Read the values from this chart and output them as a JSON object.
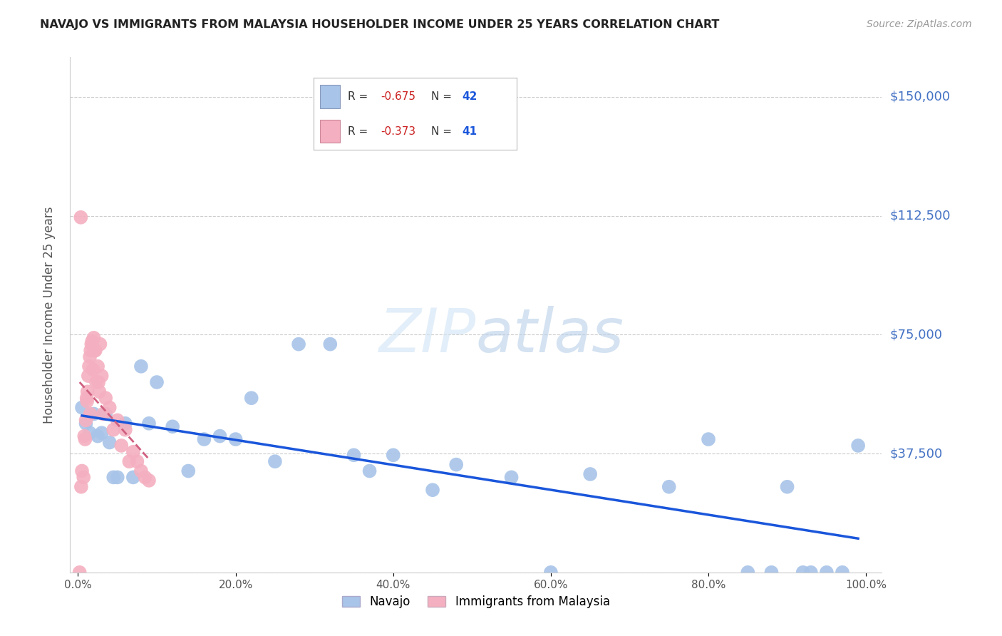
{
  "title": "NAVAJO VS IMMIGRANTS FROM MALAYSIA HOUSEHOLDER INCOME UNDER 25 YEARS CORRELATION CHART",
  "source": "Source: ZipAtlas.com",
  "ylabel": "Householder Income Under 25 years",
  "navajo_color": "#a8c4e8",
  "navajo_line_color": "#1a56db",
  "malaysia_color": "#f4b0c0",
  "malaysia_line_color": "#d06080",
  "ytick_color": "#4472c4",
  "watermark_color": "#c8ddf5",
  "navajo_x": [
    0.5,
    1.0,
    1.5,
    2.0,
    2.5,
    3.0,
    3.5,
    4.0,
    4.5,
    5.0,
    6.0,
    7.0,
    8.0,
    9.0,
    10.0,
    12.0,
    14.0,
    16.0,
    18.0,
    20.0,
    22.0,
    25.0,
    28.0,
    32.0,
    35.0,
    37.0,
    40.0,
    45.0,
    48.0,
    55.0,
    60.0,
    65.0,
    75.0,
    80.0,
    85.0,
    88.0,
    90.0,
    92.0,
    93.0,
    95.0,
    97.0,
    99.0
  ],
  "navajo_y": [
    52000,
    47000,
    44000,
    50000,
    43000,
    44000,
    50000,
    41000,
    30000,
    30000,
    47000,
    30000,
    65000,
    47000,
    60000,
    46000,
    32000,
    42000,
    43000,
    42000,
    55000,
    35000,
    72000,
    72000,
    37000,
    32000,
    37000,
    26000,
    34000,
    30000,
    0,
    31000,
    27000,
    42000,
    0,
    0,
    27000,
    0,
    0,
    0,
    0,
    40000
  ],
  "malaysia_x": [
    0.2,
    0.35,
    0.5,
    0.7,
    0.8,
    0.9,
    1.0,
    1.1,
    1.2,
    1.3,
    1.4,
    1.5,
    1.6,
    1.7,
    1.8,
    1.9,
    2.0,
    2.1,
    2.2,
    2.3,
    2.5,
    2.7,
    2.8,
    3.0,
    3.2,
    3.5,
    4.0,
    4.5,
    5.0,
    5.5,
    6.0,
    6.5,
    7.0,
    7.5,
    8.0,
    8.5,
    9.0,
    1.15,
    1.55,
    2.6,
    0.4
  ],
  "malaysia_y": [
    0,
    112000,
    32000,
    30000,
    43000,
    42000,
    48000,
    55000,
    57000,
    62000,
    65000,
    68000,
    70000,
    72000,
    73000,
    64000,
    74000,
    70000,
    70000,
    60000,
    65000,
    57000,
    72000,
    62000,
    50000,
    55000,
    52000,
    45000,
    48000,
    40000,
    45000,
    35000,
    38000,
    35000,
    32000,
    30000,
    29000,
    54000,
    50000,
    60000,
    27000
  ],
  "ylim_min": 0,
  "ylim_max": 162500,
  "xlim_min": -1,
  "xlim_max": 102
}
